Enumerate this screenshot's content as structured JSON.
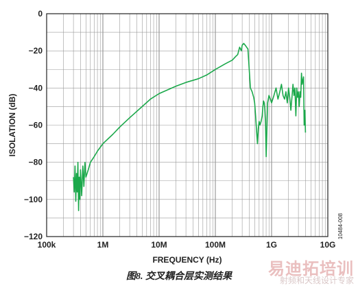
{
  "chart_data": {
    "type": "line",
    "xscale": "log",
    "xlim": [
      100000,
      10000000000
    ],
    "ylim": [
      -120,
      0
    ],
    "xlabel": "FREQUENCY (Hz)",
    "ylabel": "ISOLATION (dB)",
    "xticks": [
      {
        "value": 100000,
        "label": "100k"
      },
      {
        "value": 1000000,
        "label": "1M"
      },
      {
        "value": 10000000,
        "label": "10M"
      },
      {
        "value": 100000000,
        "label": "100M"
      },
      {
        "value": 1000000000,
        "label": "1G"
      },
      {
        "value": 10000000000,
        "label": "10G"
      }
    ],
    "yticks": [
      0,
      -20,
      -40,
      -60,
      -80,
      -100,
      -120
    ],
    "grid": true,
    "series": [
      {
        "color": "#1aa84a",
        "x": [
          300000,
          310000,
          320000,
          330000,
          340000,
          350000,
          360000,
          370000,
          380000,
          390000,
          400000,
          420000,
          440000,
          460000,
          480000,
          500000,
          550000,
          600000,
          700000,
          800000,
          1000000,
          1500000,
          2000000,
          3000000,
          5000000,
          7000000,
          10000000,
          20000000,
          30000000,
          50000000,
          70000000,
          100000000,
          150000000,
          200000000,
          230000000,
          250000000,
          270000000,
          290000000,
          300000000,
          320000000,
          340000000,
          360000000,
          380000000,
          400000000,
          420000000,
          450000000,
          480000000,
          500000000,
          520000000,
          540000000,
          560000000,
          580000000,
          600000000,
          620000000,
          650000000,
          680000000,
          700000000,
          720000000,
          740000000,
          760000000,
          780000000,
          800000000,
          850000000,
          900000000,
          950000000,
          1000000000,
          1100000000,
          1200000000,
          1300000000,
          1400000000,
          1500000000,
          1600000000,
          1700000000,
          1800000000,
          1900000000,
          2000000000,
          2100000000,
          2200000000,
          2300000000,
          2400000000,
          2500000000,
          2600000000,
          2700000000,
          2800000000,
          2900000000,
          3000000000,
          3100000000,
          3200000000,
          3300000000,
          3400000000,
          3500000000,
          3600000000,
          3700000000,
          3800000000,
          3900000000,
          4000000000
        ],
        "y": [
          -88,
          -96,
          -82,
          -101,
          -86,
          -96,
          -80,
          -106,
          -88,
          -100,
          -84,
          -98,
          -82,
          -93,
          -80,
          -88,
          -84,
          -80,
          -77,
          -74,
          -70,
          -65,
          -61,
          -56,
          -50,
          -46,
          -43,
          -39,
          -37,
          -35,
          -33,
          -30,
          -27,
          -25,
          -23,
          -22,
          -18,
          -20,
          -17,
          -16,
          -17,
          -18,
          -19,
          -30,
          -40,
          -42,
          -45,
          -48,
          -55,
          -63,
          -70,
          -62,
          -58,
          -60,
          -58,
          -55,
          -50,
          -47,
          -48,
          -52,
          -60,
          -77,
          -48,
          -44,
          -46,
          -48,
          -44,
          -40,
          -46,
          -42,
          -38,
          -44,
          -46,
          -42,
          -48,
          -40,
          -45,
          -52,
          -45,
          -38,
          -44,
          -40,
          -55,
          -40,
          -45,
          -42,
          -50,
          -42,
          -45,
          -32,
          -38,
          -36,
          -34,
          -60,
          -52,
          -64
        ]
      }
    ]
  },
  "side_code": "10484-008",
  "caption": "图8. 交叉耦合层实测结果",
  "watermark": {
    "title": "易迪拓培训",
    "subtitle": "射频和天线设计专家"
  }
}
